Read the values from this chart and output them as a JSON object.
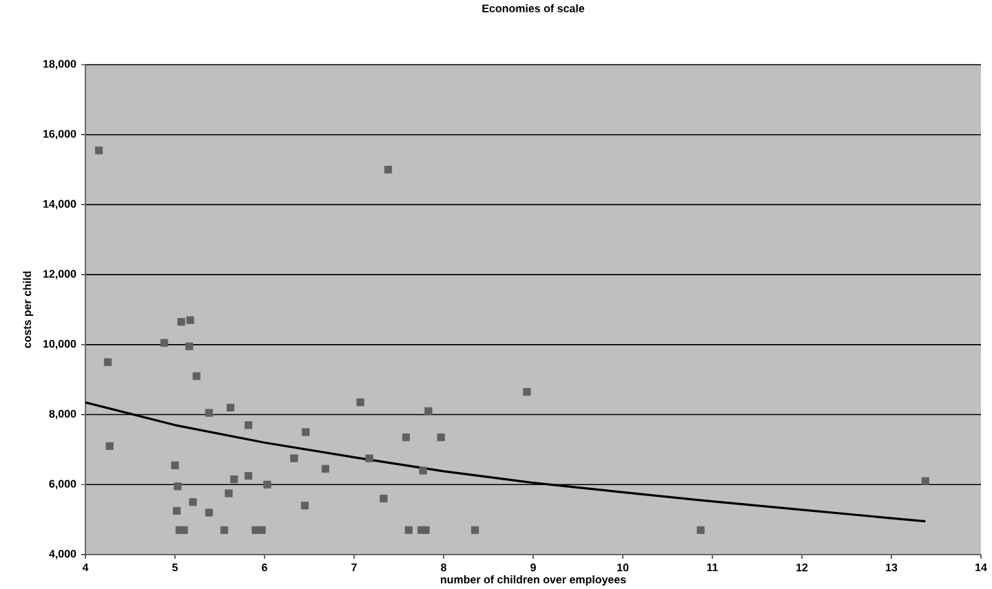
{
  "chart_data": {
    "type": "scatter",
    "title": "Economies of scale",
    "xlabel": "number of children over employees",
    "ylabel": "costs per child",
    "xlim": [
      4,
      14
    ],
    "xticks": [
      4,
      5,
      6,
      7,
      8,
      9,
      10,
      11,
      12,
      13,
      14
    ],
    "ylim": [
      4000,
      18000
    ],
    "yticks": [
      {
        "value": 4000,
        "label": "4,000"
      },
      {
        "value": 6000,
        "label": "6,000"
      },
      {
        "value": 8000,
        "label": "8,000"
      },
      {
        "value": 10000,
        "label": "10,000"
      },
      {
        "value": 12000,
        "label": "12,000"
      },
      {
        "value": 14000,
        "label": "14,000"
      },
      {
        "value": 16000,
        "label": "16,000"
      },
      {
        "value": 18000,
        "label": "18,000"
      }
    ],
    "grid": "y",
    "series": [
      {
        "marker": "square",
        "color": "#606060",
        "x": [
          4.15,
          7.38,
          4.25,
          4.27,
          4.88,
          5.07,
          5.17,
          5.16,
          5.24,
          5.0,
          5.03,
          5.02,
          5.05,
          5.1,
          5.2,
          5.38,
          5.38,
          5.55,
          5.62,
          5.6,
          5.66,
          5.82,
          5.82,
          5.9,
          5.97,
          6.03,
          6.33,
          6.45,
          6.46,
          6.68,
          7.07,
          7.17,
          7.33,
          7.58,
          7.61,
          7.75,
          7.8,
          7.77,
          7.83,
          7.97,
          8.35,
          8.93,
          10.87,
          13.38
        ],
        "values": [
          15550,
          15000,
          9500,
          7100,
          10050,
          10650,
          10700,
          9950,
          9100,
          6550,
          5950,
          5250,
          4700,
          4700,
          5500,
          8050,
          5200,
          4700,
          8200,
          5750,
          6150,
          7700,
          6250,
          4700,
          4700,
          6000,
          6750,
          5400,
          7500,
          6450,
          8350,
          6750,
          5600,
          7350,
          4700,
          4700,
          4700,
          6400,
          8100,
          7350,
          4700,
          8650,
          4700,
          6100
        ]
      },
      {
        "type": "line",
        "color": "#000000",
        "x": [
          4,
          5,
          6,
          7,
          8,
          9,
          10,
          11,
          12,
          13,
          13.38
        ],
        "values": [
          8350,
          7700,
          7200,
          6780,
          6380,
          6050,
          5780,
          5520,
          5280,
          5040,
          4950
        ]
      }
    ]
  }
}
